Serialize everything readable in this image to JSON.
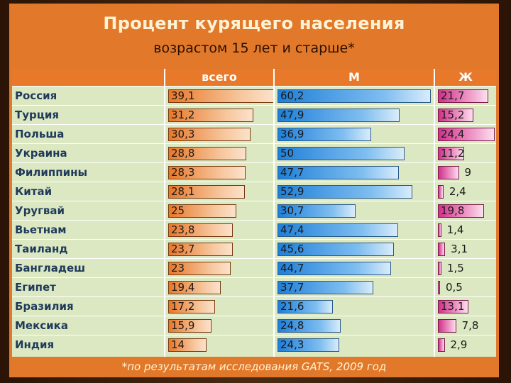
{
  "title": "Процент курящего населения",
  "subtitle": "возрастом 15 лет и старше*",
  "footnote": "*по результатам исследования GATS, 2009 год",
  "colors": {
    "header_bg": "#e8782a",
    "table_bg": "#dbe8c2",
    "total_bar": "#e8782a",
    "male_bar": "#1f7fd8",
    "female_bar": "#d0318a"
  },
  "chart_data": {
    "type": "table",
    "columns": [
      "всего",
      "М",
      "Ж"
    ],
    "rows": [
      {
        "country": "Россия",
        "total": "39,1",
        "male": "60,2",
        "female": "21,7"
      },
      {
        "country": "Турция",
        "total": "31,2",
        "male": "47,9",
        "female": "15,2"
      },
      {
        "country": "Польша",
        "total": "30,3",
        "male": "36,9",
        "female": "24,4"
      },
      {
        "country": "Украина",
        "total": "28,8",
        "male": "50",
        "female": "11,2"
      },
      {
        "country": "Филиппины",
        "total": "28,3",
        "male": "47,7",
        "female": "9"
      },
      {
        "country": "Китай",
        "total": "28,1",
        "male": "52,9",
        "female": "2,4"
      },
      {
        "country": "Уругвай",
        "total": "25",
        "male": "30,7",
        "female": "19,8"
      },
      {
        "country": "Вьетнам",
        "total": "23,8",
        "male": "47,4",
        "female": "1,4"
      },
      {
        "country": "Таиланд",
        "total": "23,7",
        "male": "45,6",
        "female": "3,1"
      },
      {
        "country": "Бангладеш",
        "total": "23",
        "male": "44,7",
        "female": "1,5"
      },
      {
        "country": "Египет",
        "total": "19,4",
        "male": "37,7",
        "female": "0,5"
      },
      {
        "country": "Бразилия",
        "total": "17,2",
        "male": "21,6",
        "female": "13,1"
      },
      {
        "country": "Мексика",
        "total": "15,9",
        "male": "24,8",
        "female": "7,8"
      },
      {
        "country": "Индия",
        "total": "14",
        "male": "24,3",
        "female": "2,9"
      }
    ]
  }
}
